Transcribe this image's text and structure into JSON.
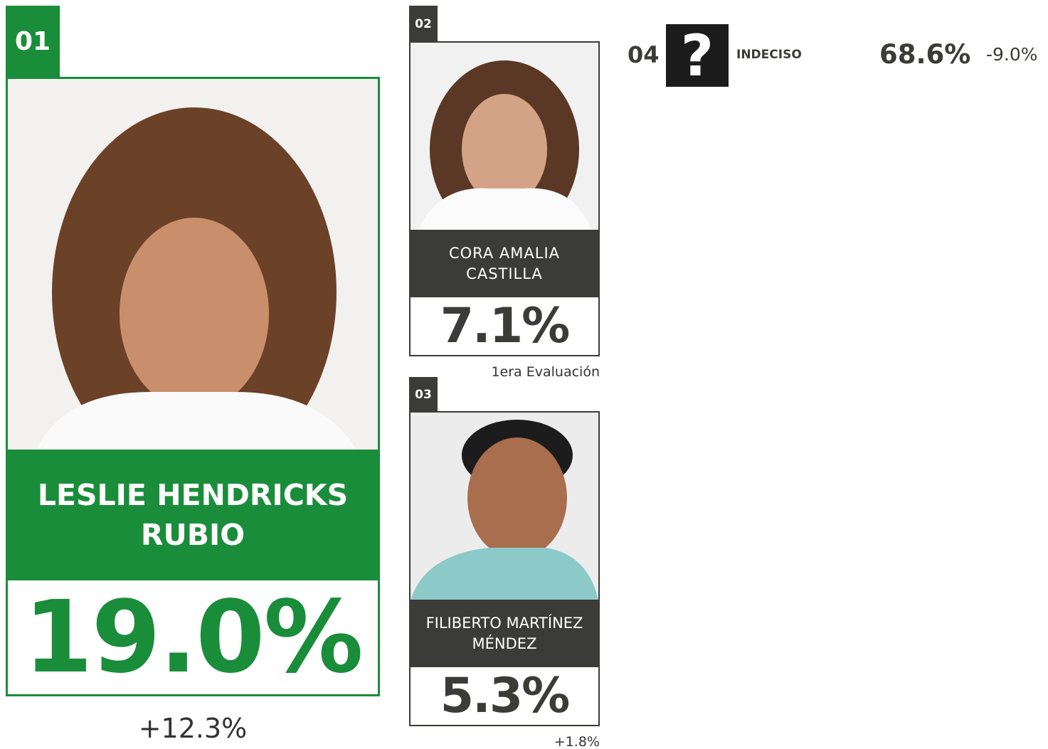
{
  "candidates": [
    {
      "rank": "01",
      "name_lines": [
        "LESLIE HENDRICKS",
        "RUBIO"
      ],
      "share": "19.0%",
      "change": "+12.3%"
    },
    {
      "rank": "02",
      "name_lines": [
        "CORA AMALIA",
        "CASTILLA"
      ],
      "share": "7.1%",
      "note": "1era Evaluación"
    },
    {
      "rank": "03",
      "name_lines": [
        "FILIBERTO MARTÍNEZ",
        "MÉNDEZ"
      ],
      "share": "5.3%",
      "change": "+1.8%"
    },
    {
      "rank": "04",
      "icon": "?",
      "name": "INDECISO",
      "share": "68.6%",
      "change": "-9.0%"
    }
  ]
}
